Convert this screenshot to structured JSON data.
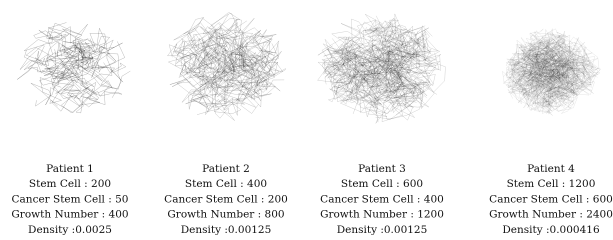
{
  "panels": [
    {
      "lines": [
        "Patient 1",
        "Stem Cell : 200",
        "Cancer Stem Cell : 50",
        "Growth Number : 400",
        "Density :0.0025"
      ]
    },
    {
      "lines": [
        "Patient 2",
        "Stem Cell : 400",
        "Cancer Stem Cell : 200",
        "Growth Number : 800",
        "Density :0.00125"
      ]
    },
    {
      "lines": [
        "Patient 3",
        "Stem Cell : 600",
        "Cancer Stem Cell : 400",
        "Growth Number : 1200",
        "Density :0.00125"
      ]
    },
    {
      "lines": [
        "Patient 4",
        "Stem Cell : 1200",
        "Cancer Stem Cell : 600",
        "Growth Number : 2400",
        "Density :0.000416"
      ]
    }
  ]
}
